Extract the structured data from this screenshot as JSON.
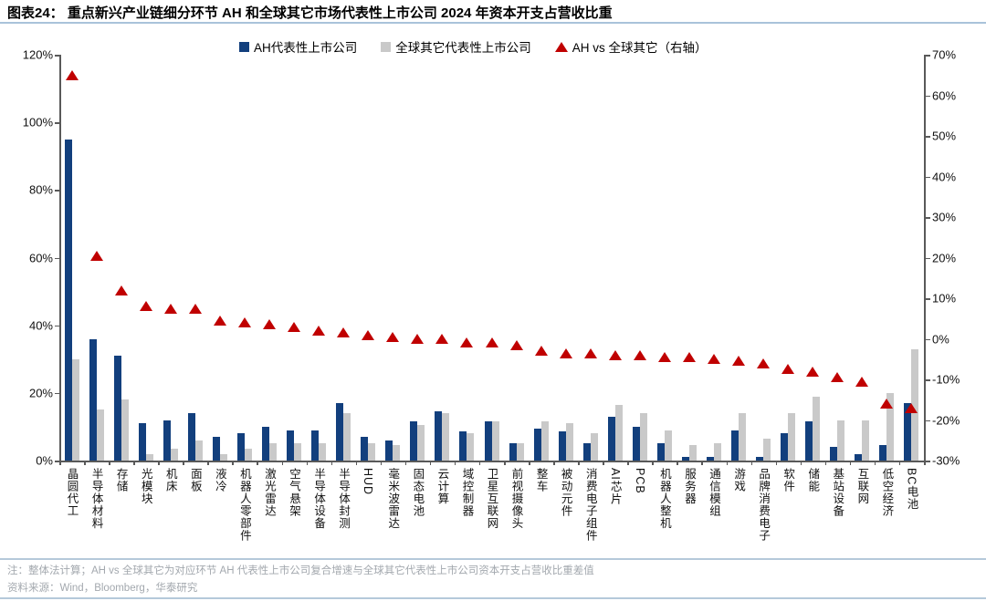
{
  "header": {
    "tag": "图表24：",
    "title": "重点新兴产业链细分环节 AH 和全球其它市场代表性上市公司 2024 年资本开支占营收比重"
  },
  "chart_data": {
    "type": "bar",
    "categories": [
      "晶圆代工",
      "半导体材料",
      "存储",
      "光模块",
      "机床",
      "面板",
      "液冷",
      "机器人零部件",
      "激光雷达",
      "空气悬架",
      "半导体设备",
      "半导体封测",
      "HUD",
      "毫米波雷达",
      "固态电池",
      "云计算",
      "域控制器",
      "卫星互联网",
      "前视摄像头",
      "整车",
      "被动元件",
      "消费电子组件",
      "AI芯片",
      "PCB",
      "机器人整机",
      "服务器",
      "通信模组",
      "游戏",
      "品牌消费电子",
      "软件",
      "储能",
      "基站设备",
      "互联网",
      "低空经济",
      "BC电池"
    ],
    "series": [
      {
        "name": "AH代表性上市公司",
        "type": "bar",
        "axis": "left",
        "color": "#123f7d",
        "values": [
          95,
          36,
          31,
          11,
          12,
          14,
          7,
          8,
          10,
          9,
          9,
          17,
          7,
          6,
          11.5,
          14.5,
          8.5,
          11.5,
          5,
          9.5,
          8.5,
          5,
          13,
          10,
          5,
          1,
          1,
          9,
          1.2,
          8,
          11.5,
          4,
          2,
          4.5,
          17
        ]
      },
      {
        "name": "全球其它代表性上市公司",
        "type": "bar",
        "axis": "left",
        "color": "#c9c9c9",
        "values": [
          30,
          15,
          18,
          2,
          3.5,
          6,
          2,
          3.5,
          5,
          5,
          5,
          14,
          5,
          4.5,
          10.5,
          14,
          8,
          11.5,
          5,
          11.5,
          11,
          8,
          16.5,
          14,
          9,
          4.5,
          5,
          14,
          6.5,
          14,
          19,
          12,
          12,
          20,
          33
        ]
      },
      {
        "name": "AH vs 全球其它（右轴）",
        "type": "scatter-triangle",
        "axis": "right",
        "color": "#c00000",
        "values": [
          65,
          20.5,
          12,
          8,
          7.5,
          7.5,
          4.5,
          4,
          3.5,
          3,
          2,
          1.5,
          1,
          0.5,
          0,
          0,
          -1,
          -1,
          -1.5,
          -3,
          -3.5,
          -3.5,
          -4,
          -4,
          -4.5,
          -4.5,
          -5,
          -5.5,
          -6,
          -7.5,
          -8,
          -9.5,
          -10.5,
          -16,
          -17
        ]
      }
    ],
    "left_axis": {
      "min": 0,
      "max": 120,
      "step": 20,
      "suffix": "%"
    },
    "right_axis": {
      "min": -30,
      "max": 70,
      "step": 10,
      "suffix": "%"
    },
    "grid": false,
    "legend_position": "top"
  },
  "footnotes": {
    "note": "注：整体法计算；AH vs 全球其它为对应环节 AH 代表性上市公司复合增速与全球其它代表性上市公司资本开支占营收比重差值",
    "source": "资料来源：Wind，Bloomberg，华泰研究"
  }
}
